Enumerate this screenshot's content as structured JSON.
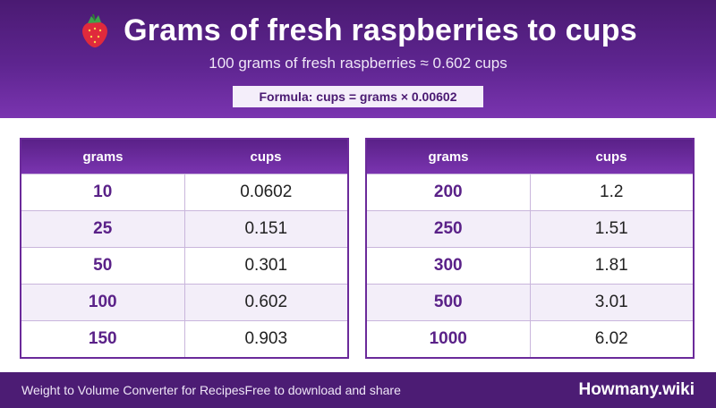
{
  "header": {
    "icon": "strawberry-icon",
    "title": "Grams of fresh raspberries to cups",
    "subtitle": "100 grams of fresh raspberries ≈ 0.602 cups",
    "formula": "Formula: cups = grams × 0.00602"
  },
  "tables": [
    {
      "headers": [
        "grams",
        "cups"
      ],
      "rows": [
        [
          "10",
          "0.0602"
        ],
        [
          "25",
          "0.151"
        ],
        [
          "50",
          "0.301"
        ],
        [
          "100",
          "0.602"
        ],
        [
          "150",
          "0.903"
        ]
      ]
    },
    {
      "headers": [
        "grams",
        "cups"
      ],
      "rows": [
        [
          "200",
          "1.2"
        ],
        [
          "250",
          "1.51"
        ],
        [
          "300",
          "1.81"
        ],
        [
          "500",
          "3.01"
        ],
        [
          "1000",
          "6.02"
        ]
      ]
    }
  ],
  "footer": {
    "left_text": "Weight to Volume Converter for RecipesFree to download and share",
    "brand": "Howmany.wiki"
  },
  "colors": {
    "primary": "#5e2590",
    "row_alt": "#f3eef9",
    "grams_text": "#5a2188"
  }
}
